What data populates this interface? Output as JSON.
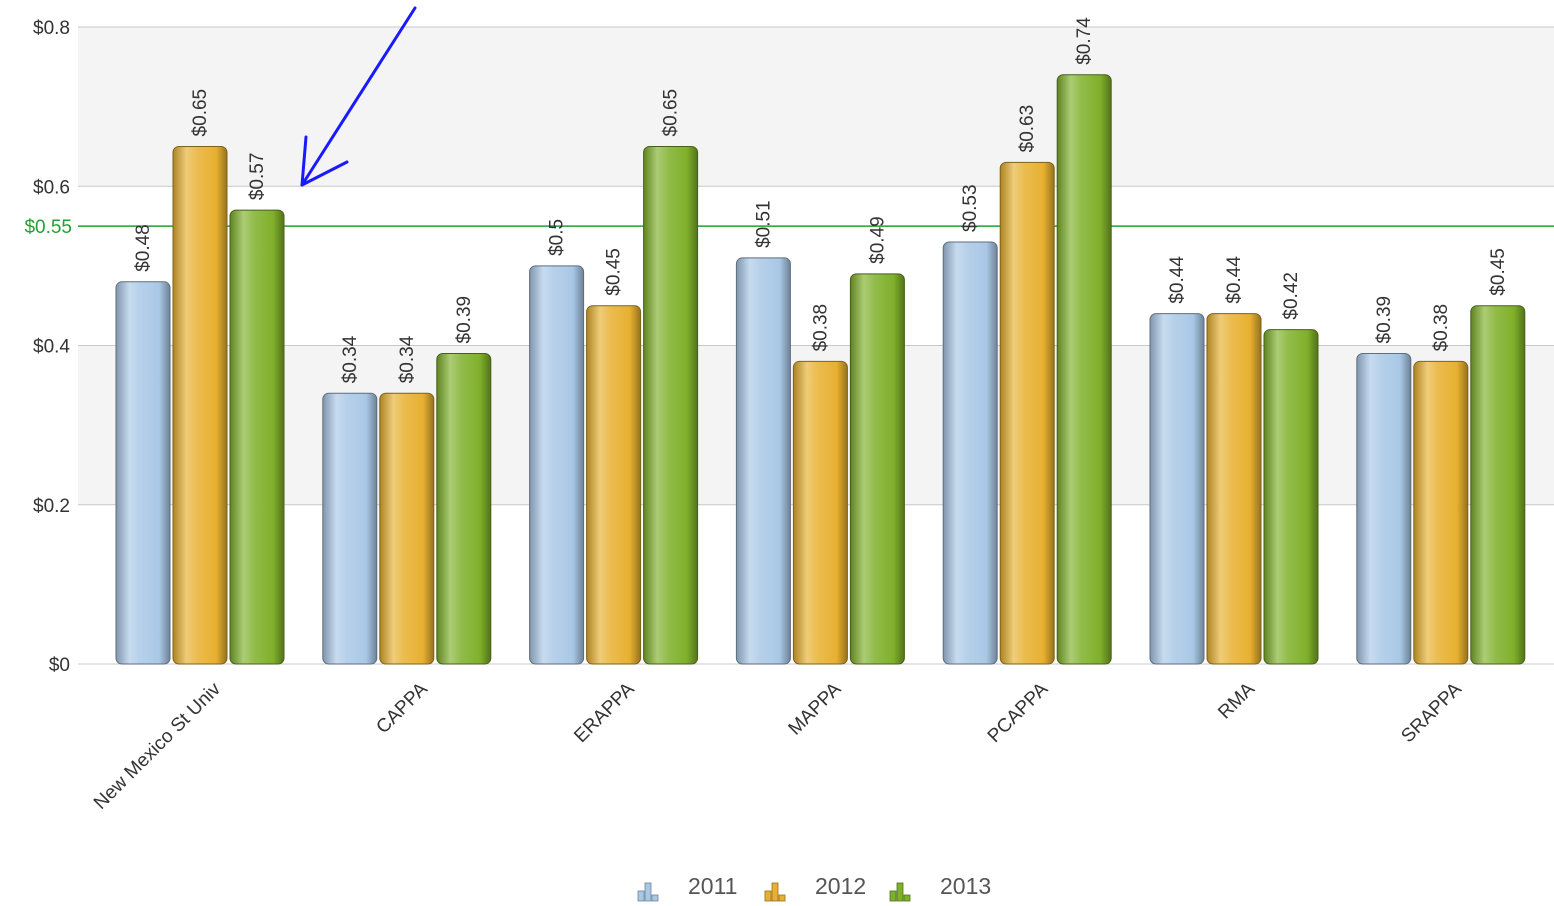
{
  "chart_data": {
    "type": "bar",
    "categories": [
      "New Mexico St Univ",
      "CAPPA",
      "ERAPPA",
      "MAPPA",
      "PCAPPA",
      "RMA",
      "SRAPPA"
    ],
    "series": [
      {
        "name": "2011",
        "values": [
          0.48,
          0.34,
          0.5,
          0.51,
          0.53,
          0.44,
          0.39
        ],
        "labels": [
          "$0.48",
          "$0.34",
          "$0.5",
          "$0.51",
          "$0.53",
          "$0.44",
          "$0.39"
        ],
        "color": "#a9c8e6"
      },
      {
        "name": "2012",
        "values": [
          0.65,
          0.34,
          0.45,
          0.38,
          0.63,
          0.44,
          0.38
        ],
        "labels": [
          "$0.65",
          "$0.34",
          "$0.45",
          "$0.38",
          "$0.63",
          "$0.44",
          "$0.38"
        ],
        "color": "#e7b030"
      },
      {
        "name": "2013",
        "values": [
          0.57,
          0.39,
          0.65,
          0.49,
          0.74,
          0.42,
          0.45
        ],
        "labels": [
          "$0.57",
          "$0.39",
          "$0.65",
          "$0.49",
          "$0.74",
          "$0.42",
          "$0.45"
        ],
        "color": "#7fb02a"
      }
    ],
    "ylim": [
      0,
      0.8
    ],
    "yticks": [
      {
        "value": 0,
        "label": "$0"
      },
      {
        "value": 0.2,
        "label": "$0.2"
      },
      {
        "value": 0.4,
        "label": "$0.4"
      },
      {
        "value": 0.6,
        "label": "$0.6"
      },
      {
        "value": 0.8,
        "label": "$0.8"
      }
    ],
    "reference_line": {
      "value": 0.55,
      "label": "$0.55",
      "color": "#22a033"
    },
    "annotation": {
      "type": "arrow",
      "color": "#1a1aff",
      "points_to": "New Mexico St Univ 2013"
    },
    "grid": true,
    "alternating_bands": true,
    "legend_position": "bottom-center",
    "title": "",
    "xlabel": "",
    "ylabel": ""
  }
}
